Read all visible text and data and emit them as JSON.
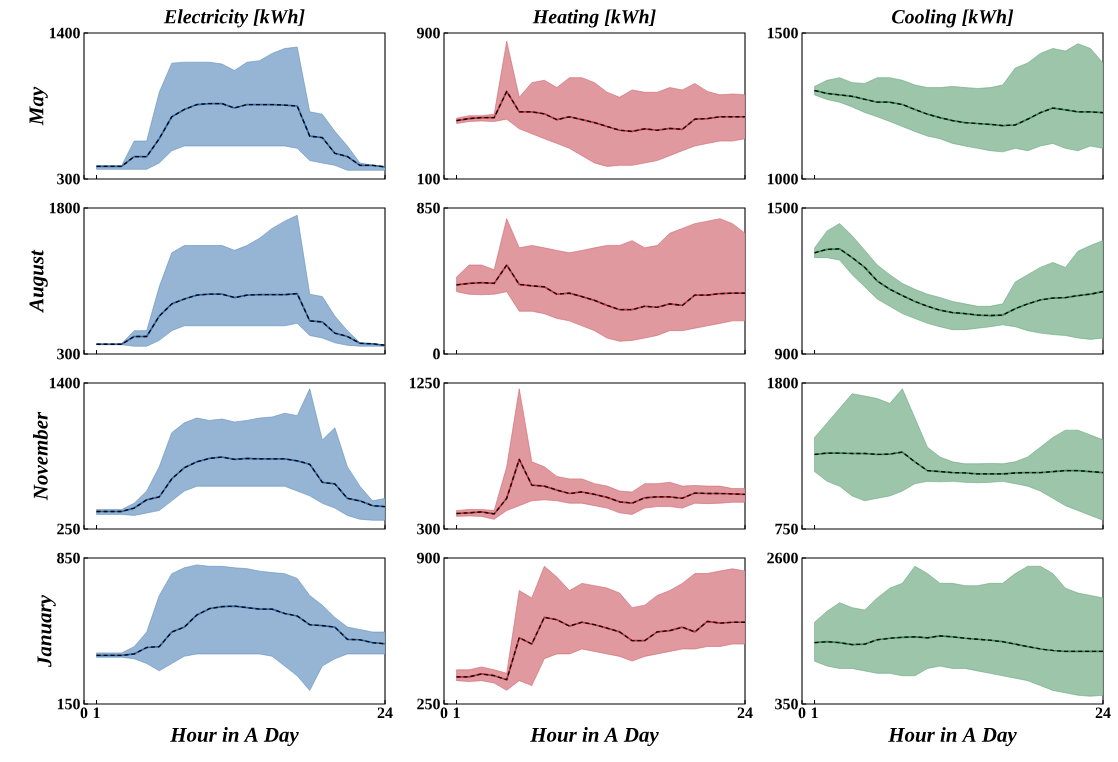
{
  "chart_data": [
    {
      "type": "line",
      "title": "Electricity [kWh]",
      "ylabel": "May",
      "x": [
        1,
        2,
        3,
        4,
        5,
        6,
        7,
        8,
        9,
        10,
        11,
        12,
        13,
        14,
        15,
        16,
        17,
        18,
        19,
        20,
        21,
        22,
        23,
        24
      ],
      "xlim": [
        0,
        24
      ],
      "xticks": [
        0,
        1,
        24
      ],
      "ylim": [
        300,
        1400
      ],
      "yticks": [
        300,
        1400
      ],
      "tick_labels": "y",
      "series": [
        {
          "color": "#2e6aaa",
          "line_style": "solid",
          "values": [
            395,
            395,
            395,
            469,
            469,
            604,
            769,
            824,
            861,
            868,
            868,
            835,
            861,
            861,
            861,
            857,
            850,
            623,
            612,
            494,
            469,
            403,
            403,
            392
          ],
          "upper": [
            400,
            400,
            400,
            586,
            586,
            953,
            1173,
            1180,
            1180,
            1180,
            1166,
            1118,
            1180,
            1191,
            1246,
            1283,
            1294,
            806,
            788,
            659,
            549,
            421,
            403,
            385
          ],
          "lower": [
            373,
            373,
            373,
            373,
            373,
            421,
            513,
            549,
            549,
            549,
            549,
            549,
            549,
            549,
            549,
            549,
            531,
            439,
            421,
            403,
            366,
            366,
            366,
            366
          ]
        },
        {
          "color": "#000000",
          "line_style": "dashed",
          "values": [
            395,
            395,
            395,
            469,
            469,
            604,
            769,
            824,
            861,
            868,
            868,
            835,
            861,
            861,
            861,
            857,
            850,
            623,
            612,
            494,
            469,
            403,
            403,
            392
          ]
        }
      ]
    },
    {
      "type": "line",
      "title": "Heating [kWh]",
      "x": [
        1,
        2,
        3,
        4,
        5,
        6,
        7,
        8,
        9,
        10,
        11,
        12,
        13,
        14,
        15,
        16,
        17,
        18,
        19,
        20,
        21,
        22,
        23,
        24
      ],
      "xlim": [
        0,
        24
      ],
      "xticks": [
        0,
        1,
        24
      ],
      "ylim": [
        100,
        900
      ],
      "yticks": [
        100,
        900
      ],
      "tick_labels": "y",
      "series": [
        {
          "color": "#c0343f",
          "line_style": "solid",
          "values": [
            420,
            431,
            436,
            436,
            580,
            468,
            468,
            457,
            425,
            441,
            425,
            409,
            388,
            367,
            361,
            375,
            367,
            377,
            372,
            428,
            431,
            441,
            441,
            441
          ],
          "upper": [
            433,
            447,
            447,
            455,
            855,
            548,
            628,
            641,
            601,
            655,
            655,
            628,
            575,
            548,
            588,
            575,
            575,
            601,
            588,
            623,
            580,
            561,
            566,
            561
          ],
          "lower": [
            404,
            415,
            418,
            415,
            428,
            375,
            348,
            321,
            295,
            268,
            228,
            188,
            169,
            175,
            175,
            188,
            201,
            228,
            255,
            281,
            295,
            308,
            308,
            321
          ]
        },
        {
          "color": "#000000",
          "line_style": "dashed",
          "values": [
            420,
            431,
            436,
            436,
            580,
            468,
            468,
            457,
            425,
            441,
            425,
            409,
            388,
            367,
            361,
            375,
            367,
            377,
            372,
            428,
            431,
            441,
            441,
            441
          ]
        }
      ]
    },
    {
      "type": "line",
      "title": "Cooling [kWh]",
      "x": [
        1,
        2,
        3,
        4,
        5,
        6,
        7,
        8,
        9,
        10,
        11,
        12,
        13,
        14,
        15,
        16,
        17,
        18,
        19,
        20,
        21,
        22,
        23,
        24
      ],
      "xlim": [
        0,
        24
      ],
      "xticks": [
        0,
        1,
        24
      ],
      "ylim": [
        1000,
        1500
      ],
      "yticks": [
        1000,
        1500
      ],
      "tick_labels": "y",
      "series": [
        {
          "color": "#3a8a55",
          "line_style": "solid",
          "values": [
            1303,
            1293,
            1288,
            1283,
            1273,
            1263,
            1263,
            1255,
            1238,
            1222,
            1210,
            1200,
            1193,
            1190,
            1187,
            1183,
            1185,
            1205,
            1227,
            1243,
            1237,
            1230,
            1230,
            1227
          ],
          "upper": [
            1317,
            1338,
            1347,
            1330,
            1327,
            1347,
            1347,
            1338,
            1322,
            1313,
            1313,
            1317,
            1313,
            1310,
            1313,
            1322,
            1380,
            1397,
            1430,
            1447,
            1438,
            1463,
            1447,
            1397
          ],
          "lower": [
            1288,
            1272,
            1263,
            1247,
            1228,
            1213,
            1197,
            1180,
            1163,
            1147,
            1138,
            1122,
            1113,
            1105,
            1097,
            1093,
            1105,
            1097,
            1113,
            1122,
            1105,
            1097,
            1113,
            1105
          ]
        },
        {
          "color": "#000000",
          "line_style": "dashed",
          "values": [
            1303,
            1293,
            1288,
            1283,
            1273,
            1263,
            1263,
            1255,
            1238,
            1222,
            1210,
            1200,
            1193,
            1190,
            1187,
            1183,
            1185,
            1205,
            1227,
            1243,
            1237,
            1230,
            1230,
            1227
          ]
        }
      ]
    },
    {
      "type": "line",
      "ylabel": "August",
      "x": [
        1,
        2,
        3,
        4,
        5,
        6,
        7,
        8,
        9,
        10,
        11,
        12,
        13,
        14,
        15,
        16,
        17,
        18,
        19,
        20,
        21,
        22,
        23,
        24
      ],
      "xlim": [
        0,
        24
      ],
      "xticks": [
        0,
        1,
        24
      ],
      "ylim": [
        300,
        1800
      ],
      "yticks": [
        300,
        1800
      ],
      "tick_labels": "y",
      "series": [
        {
          "color": "#2e6aaa",
          "line_style": "solid",
          "values": [
            400,
            400,
            400,
            480,
            480,
            690,
            815,
            865,
            905,
            915,
            915,
            880,
            905,
            910,
            910,
            910,
            920,
            640,
            630,
            515,
            480,
            410,
            405,
            390
          ],
          "upper": [
            405,
            405,
            405,
            540,
            540,
            990,
            1340,
            1415,
            1415,
            1415,
            1415,
            1365,
            1415,
            1490,
            1590,
            1665,
            1725,
            915,
            890,
            690,
            540,
            415,
            407,
            380
          ],
          "lower": [
            395,
            395,
            395,
            380,
            380,
            440,
            540,
            590,
            590,
            590,
            590,
            590,
            590,
            590,
            590,
            590,
            615,
            490,
            465,
            415,
            390,
            380,
            380,
            380
          ]
        },
        {
          "color": "#000000",
          "line_style": "dashed",
          "values": [
            400,
            400,
            400,
            480,
            480,
            690,
            815,
            865,
            905,
            915,
            915,
            880,
            905,
            910,
            910,
            910,
            920,
            640,
            630,
            515,
            480,
            410,
            405,
            390
          ]
        }
      ]
    },
    {
      "type": "line",
      "x": [
        1,
        2,
        3,
        4,
        5,
        6,
        7,
        8,
        9,
        10,
        11,
        12,
        13,
        14,
        15,
        16,
        17,
        18,
        19,
        20,
        21,
        22,
        23,
        24
      ],
      "xlim": [
        0,
        24
      ],
      "xticks": [
        0,
        1,
        24
      ],
      "ylim": [
        0,
        850
      ],
      "yticks": [
        0,
        850
      ],
      "tick_labels": "y",
      "series": [
        {
          "color": "#c0343f",
          "line_style": "solid",
          "values": [
            402,
            411,
            416,
            411,
            518,
            405,
            397,
            391,
            348,
            354,
            334,
            312,
            283,
            258,
            258,
            278,
            272,
            292,
            283,
            343,
            343,
            351,
            354,
            354
          ],
          "upper": [
            448,
            518,
            518,
            490,
            788,
            618,
            632,
            618,
            603,
            589,
            603,
            618,
            632,
            632,
            660,
            618,
            632,
            703,
            731,
            759,
            773,
            788,
            759,
            703
          ],
          "lower": [
            363,
            348,
            345,
            348,
            363,
            249,
            249,
            235,
            207,
            193,
            164,
            136,
            93,
            74,
            79,
            93,
            108,
            136,
            136,
            150,
            164,
            178,
            193,
            193
          ]
        },
        {
          "color": "#000000",
          "line_style": "dashed",
          "values": [
            402,
            411,
            416,
            411,
            518,
            405,
            397,
            391,
            348,
            354,
            334,
            312,
            283,
            258,
            258,
            278,
            272,
            292,
            283,
            343,
            343,
            351,
            354,
            354
          ]
        }
      ]
    },
    {
      "type": "line",
      "x": [
        1,
        2,
        3,
        4,
        5,
        6,
        7,
        8,
        9,
        10,
        11,
        12,
        13,
        14,
        15,
        16,
        17,
        18,
        19,
        20,
        21,
        22,
        23,
        24
      ],
      "xlim": [
        0,
        24
      ],
      "xticks": [
        0,
        1,
        24
      ],
      "ylim": [
        900,
        1500
      ],
      "yticks": [
        900,
        1500
      ],
      "tick_labels": "y",
      "series": [
        {
          "color": "#3a8a55",
          "line_style": "solid",
          "values": [
            1316,
            1330,
            1332,
            1296,
            1256,
            1200,
            1166,
            1140,
            1116,
            1096,
            1080,
            1070,
            1066,
            1060,
            1058,
            1060,
            1086,
            1106,
            1122,
            1130,
            1132,
            1140,
            1146,
            1156
          ],
          "upper": [
            1336,
            1406,
            1436,
            1386,
            1326,
            1266,
            1226,
            1190,
            1166,
            1146,
            1132,
            1116,
            1106,
            1096,
            1096,
            1106,
            1196,
            1226,
            1256,
            1276,
            1256,
            1322,
            1346,
            1366
          ],
          "lower": [
            1296,
            1296,
            1286,
            1226,
            1176,
            1126,
            1096,
            1066,
            1046,
            1026,
            1012,
            1000,
            1000,
            1006,
            1012,
            1020,
            1012,
            996,
            986,
            980,
            976,
            966,
            960,
            966
          ]
        },
        {
          "color": "#000000",
          "line_style": "dashed",
          "values": [
            1316,
            1330,
            1332,
            1296,
            1256,
            1200,
            1166,
            1140,
            1116,
            1096,
            1080,
            1070,
            1066,
            1060,
            1058,
            1060,
            1086,
            1106,
            1122,
            1130,
            1132,
            1140,
            1146,
            1156
          ]
        }
      ]
    },
    {
      "type": "line",
      "ylabel": "November",
      "x": [
        1,
        2,
        3,
        4,
        5,
        6,
        7,
        8,
        9,
        10,
        11,
        12,
        13,
        14,
        15,
        16,
        17,
        18,
        19,
        20,
        21,
        22,
        23,
        24
      ],
      "xlim": [
        0,
        24
      ],
      "xticks": [
        0,
        1,
        24
      ],
      "ylim": [
        250,
        1400
      ],
      "yticks": [
        250,
        1400
      ],
      "tick_labels": "y",
      "series": [
        {
          "color": "#2e6aaa",
          "line_style": "solid",
          "values": [
            388,
            388,
            388,
            415,
            480,
            503,
            645,
            733,
            779,
            806,
            817,
            798,
            806,
            802,
            802,
            802,
            787,
            760,
            618,
            606,
            491,
            472,
            434,
            426
          ],
          "upper": [
            403,
            403,
            403,
            453,
            549,
            741,
            1009,
            1086,
            1124,
            1105,
            1116,
            1093,
            1105,
            1124,
            1132,
            1162,
            1143,
            1354,
            951,
            1047,
            741,
            587,
            472,
            491
          ],
          "lower": [
            365,
            365,
            365,
            357,
            376,
            396,
            472,
            549,
            587,
            587,
            587,
            587,
            587,
            587,
            587,
            587,
            549,
            511,
            453,
            415,
            357,
            327,
            319,
            319
          ]
        },
        {
          "color": "#000000",
          "line_style": "dashed",
          "values": [
            388,
            388,
            388,
            415,
            480,
            503,
            645,
            733,
            779,
            806,
            817,
            798,
            806,
            802,
            802,
            802,
            787,
            760,
            618,
            606,
            491,
            472,
            434,
            426
          ]
        }
      ]
    },
    {
      "type": "line",
      "x": [
        1,
        2,
        3,
        4,
        5,
        6,
        7,
        8,
        9,
        10,
        11,
        12,
        13,
        14,
        15,
        16,
        17,
        18,
        19,
        20,
        21,
        22,
        23,
        24
      ],
      "xlim": [
        0,
        24
      ],
      "xticks": [
        0,
        1,
        24
      ],
      "ylim": [
        300,
        1250
      ],
      "yticks": [
        300,
        1250
      ],
      "tick_labels": "y",
      "series": [
        {
          "color": "#c0343f",
          "line_style": "solid",
          "values": [
            401,
            405,
            411,
            398,
            500,
            753,
            585,
            579,
            553,
            531,
            541,
            525,
            506,
            477,
            468,
            503,
            509,
            509,
            500,
            534,
            531,
            531,
            528,
            525
          ],
          "upper": [
            420,
            427,
            427,
            420,
            705,
            1212,
            737,
            705,
            642,
            626,
            626,
            595,
            579,
            547,
            541,
            595,
            595,
            604,
            579,
            583,
            579,
            579,
            563,
            563
          ],
          "lower": [
            382,
            385,
            382,
            363,
            420,
            452,
            484,
            490,
            484,
            468,
            468,
            452,
            436,
            405,
            395,
            436,
            446,
            446,
            436,
            468,
            465,
            468,
            474,
            474
          ]
        },
        {
          "color": "#000000",
          "line_style": "dashed",
          "values": [
            401,
            405,
            411,
            398,
            500,
            753,
            585,
            579,
            553,
            531,
            541,
            525,
            506,
            477,
            468,
            503,
            509,
            509,
            500,
            534,
            531,
            531,
            528,
            525
          ]
        }
      ]
    },
    {
      "type": "line",
      "x": [
        1,
        2,
        3,
        4,
        5,
        6,
        7,
        8,
        9,
        10,
        11,
        12,
        13,
        14,
        15,
        16,
        17,
        18,
        19,
        20,
        21,
        22,
        23,
        24
      ],
      "xlim": [
        0,
        24
      ],
      "xticks": [
        0,
        1,
        24
      ],
      "ylim": [
        750,
        1800
      ],
      "yticks": [
        750,
        1800
      ],
      "tick_labels": "y",
      "series": [
        {
          "color": "#3a8a55",
          "line_style": "solid",
          "values": [
            1286,
            1296,
            1296,
            1293,
            1293,
            1286,
            1289,
            1303,
            1233,
            1170,
            1163,
            1156,
            1153,
            1146,
            1146,
            1146,
            1153,
            1156,
            1156,
            1163,
            1170,
            1170,
            1163,
            1156
          ],
          "upper": [
            1408,
            1513,
            1618,
            1723,
            1706,
            1688,
            1653,
            1758,
            1548,
            1338,
            1268,
            1233,
            1219,
            1219,
            1222,
            1219,
            1233,
            1268,
            1338,
            1408,
            1461,
            1461,
            1426,
            1391
          ],
          "lower": [
            1163,
            1093,
            1058,
            988,
            953,
            971,
            988,
            1023,
            1076,
            1093,
            1090,
            1093,
            1086,
            1083,
            1086,
            1093,
            1076,
            1058,
            1023,
            971,
            918,
            883,
            848,
            813
          ]
        },
        {
          "color": "#000000",
          "line_style": "dashed",
          "values": [
            1286,
            1296,
            1296,
            1293,
            1293,
            1286,
            1289,
            1303,
            1233,
            1170,
            1163,
            1156,
            1153,
            1146,
            1146,
            1146,
            1153,
            1156,
            1156,
            1163,
            1170,
            1170,
            1163,
            1156
          ]
        }
      ]
    },
    {
      "type": "line",
      "ylabel": "January",
      "xlabel": "Hour in A Day",
      "x": [
        1,
        2,
        3,
        4,
        5,
        6,
        7,
        8,
        9,
        10,
        11,
        12,
        13,
        14,
        15,
        16,
        17,
        18,
        19,
        20,
        21,
        22,
        23,
        24
      ],
      "xlim": [
        0,
        24
      ],
      "xticks": [
        0,
        1,
        24
      ],
      "ylim": [
        150,
        850
      ],
      "yticks": [
        150,
        850
      ],
      "series": [
        {
          "color": "#2e6aaa",
          "line_style": "solid",
          "values": [
            383,
            383,
            383,
            390,
            421,
            425,
            495,
            519,
            577,
            607,
            617,
            619,
            612,
            605,
            605,
            584,
            572,
            530,
            526,
            519,
            460,
            458,
            444,
            439
          ],
          "upper": [
            395,
            395,
            395,
            425,
            495,
            670,
            775,
            803,
            817,
            810,
            810,
            803,
            799,
            787,
            780,
            775,
            752,
            670,
            624,
            565,
            519,
            507,
            495,
            495
          ],
          "lower": [
            374,
            374,
            374,
            367,
            344,
            309,
            344,
            379,
            390,
            390,
            390,
            390,
            390,
            390,
            379,
            332,
            285,
            215,
            332,
            367,
            390,
            390,
            390,
            390
          ]
        },
        {
          "color": "#000000",
          "line_style": "dashed",
          "values": [
            383,
            383,
            383,
            390,
            421,
            425,
            495,
            519,
            577,
            607,
            617,
            619,
            612,
            605,
            605,
            584,
            572,
            530,
            526,
            519,
            460,
            458,
            444,
            439
          ]
        }
      ]
    },
    {
      "type": "line",
      "xlabel": "Hour in A Day",
      "x": [
        1,
        2,
        3,
        4,
        5,
        6,
        7,
        8,
        9,
        10,
        11,
        12,
        13,
        14,
        15,
        16,
        17,
        18,
        19,
        20,
        21,
        22,
        23,
        24
      ],
      "xlim": [
        0,
        24
      ],
      "xticks": [
        0,
        1,
        24
      ],
      "ylim": [
        250,
        900
      ],
      "yticks": [
        250,
        900
      ],
      "series": [
        {
          "color": "#c0343f",
          "line_style": "solid",
          "values": [
            371,
            371,
            384,
            376,
            358,
            545,
            517,
            636,
            625,
            597,
            614,
            603,
            588,
            571,
            532,
            532,
            571,
            577,
            592,
            571,
            618,
            610,
            614,
            614
          ],
          "upper": [
            402,
            402,
            415,
            402,
            387,
            755,
            722,
            863,
            815,
            755,
            787,
            777,
            766,
            744,
            679,
            690,
            733,
            755,
            787,
            831,
            831,
            842,
            852,
            842
          ],
          "lower": [
            354,
            350,
            354,
            343,
            311,
            354,
            332,
            452,
            473,
            473,
            495,
            484,
            473,
            462,
            441,
            462,
            473,
            484,
            495,
            495,
            506,
            506,
            517,
            517
          ]
        },
        {
          "color": "#000000",
          "line_style": "dashed",
          "values": [
            371,
            371,
            384,
            376,
            358,
            545,
            517,
            636,
            625,
            597,
            614,
            603,
            588,
            571,
            532,
            532,
            571,
            577,
            592,
            571,
            618,
            610,
            614,
            614
          ]
        }
      ]
    },
    {
      "type": "line",
      "xlabel": "Hour in A Day",
      "x": [
        1,
        2,
        3,
        4,
        5,
        6,
        7,
        8,
        9,
        10,
        11,
        12,
        13,
        14,
        15,
        16,
        17,
        18,
        19,
        20,
        21,
        22,
        23,
        24
      ],
      "xlim": [
        0,
        24
      ],
      "xticks": [
        0,
        1,
        24
      ],
      "ylim": [
        350,
        2600
      ],
      "yticks": [
        350,
        2600
      ],
      "series": [
        {
          "color": "#3a8a55",
          "line_style": "solid",
          "values": [
            1295,
            1310,
            1295,
            1265,
            1273,
            1340,
            1363,
            1378,
            1385,
            1370,
            1400,
            1385,
            1363,
            1348,
            1333,
            1310,
            1273,
            1235,
            1198,
            1175,
            1160,
            1160,
            1160,
            1160
          ],
          "upper": [
            1610,
            1780,
            1910,
            1835,
            1798,
            1985,
            2135,
            2210,
            2473,
            2360,
            2210,
            2210,
            2173,
            2173,
            2210,
            2210,
            2360,
            2473,
            2473,
            2360,
            2135,
            2060,
            2023,
            1985
          ],
          "lower": [
            1010,
            935,
            898,
            898,
            860,
            823,
            823,
            785,
            785,
            898,
            935,
            898,
            898,
            860,
            823,
            785,
            748,
            710,
            635,
            560,
            523,
            485,
            470,
            485
          ]
        },
        {
          "color": "#000000",
          "line_style": "dashed",
          "values": [
            1295,
            1310,
            1295,
            1265,
            1273,
            1340,
            1363,
            1378,
            1385,
            1370,
            1400,
            1385,
            1363,
            1348,
            1333,
            1310,
            1273,
            1235,
            1198,
            1175,
            1160,
            1160,
            1160,
            1160
          ]
        }
      ]
    }
  ]
}
